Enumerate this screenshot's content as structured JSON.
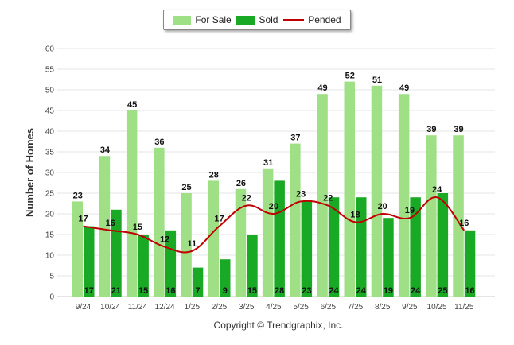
{
  "legend": {
    "for_sale": "For Sale",
    "sold": "Sold",
    "pended": "Pended"
  },
  "colors": {
    "for_sale": "#9fdf85",
    "sold": "#1aa925",
    "pended": "#c00000",
    "grid": "#e6e6e6"
  },
  "copyright": "Copyright © Trendgraphix, Inc.",
  "chart_data": {
    "type": "bar",
    "ylabel": "Number of Homes",
    "xlabel": "",
    "ylim": [
      0,
      60
    ],
    "yticks": [
      0,
      5,
      10,
      15,
      20,
      25,
      30,
      35,
      40,
      45,
      50,
      55,
      60
    ],
    "categories": [
      "9/24",
      "10/24",
      "11/24",
      "12/24",
      "1/25",
      "2/25",
      "3/25",
      "4/25",
      "5/25",
      "6/25",
      "7/25",
      "8/25",
      "9/25",
      "10/25",
      "11/25"
    ],
    "series": [
      {
        "name": "For Sale",
        "type": "bar",
        "values": [
          23,
          34,
          45,
          36,
          25,
          28,
          26,
          31,
          37,
          49,
          52,
          51,
          49,
          39,
          39
        ]
      },
      {
        "name": "Sold",
        "type": "bar",
        "values": [
          17,
          21,
          15,
          16,
          7,
          9,
          15,
          28,
          23,
          24,
          24,
          19,
          24,
          25,
          16
        ]
      },
      {
        "name": "Pended",
        "type": "line",
        "values": [
          17,
          16,
          15,
          12,
          11,
          17,
          22,
          20,
          23,
          22,
          18,
          20,
          19,
          24,
          16
        ]
      }
    ]
  }
}
